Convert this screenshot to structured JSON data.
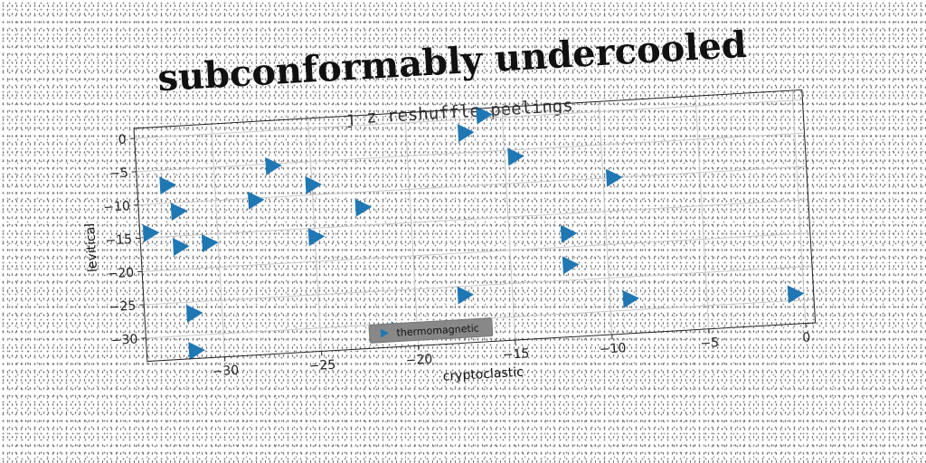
{
  "chart_data": {
    "type": "scatter",
    "title": "subconformably undercooled",
    "subtitle": "j z reshuffle peelings",
    "xlabel": "cryptoclastic",
    "ylabel": "levitical",
    "xlim": [
      -34,
      0.5
    ],
    "ylim": [
      -33.5,
      1.5
    ],
    "xticks": [
      -30,
      -25,
      -20,
      -15,
      -10,
      -5,
      0
    ],
    "yticks": [
      0,
      -5,
      -10,
      -15,
      -20,
      -25,
      -30
    ],
    "grid": true,
    "legend_position": "lower-center",
    "marker": "triangle-right",
    "marker_color": "#1f77b4",
    "series": [
      {
        "name": "thermomagnetic",
        "points": [
          {
            "x": -16,
            "y": 0.5
          },
          {
            "x": -17,
            "y": -2
          },
          {
            "x": -14.5,
            "y": -6
          },
          {
            "x": -27,
            "y": -5.3
          },
          {
            "x": -32.5,
            "y": -7.3
          },
          {
            "x": -25,
            "y": -8.5
          },
          {
            "x": -9.5,
            "y": -10
          },
          {
            "x": -28,
            "y": -10.3
          },
          {
            "x": -32,
            "y": -11.3
          },
          {
            "x": -22.5,
            "y": -12.3
          },
          {
            "x": -33.5,
            "y": -14.3
          },
          {
            "x": -32,
            "y": -16.6
          },
          {
            "x": -30.5,
            "y": -16.3
          },
          {
            "x": -25,
            "y": -16.3
          },
          {
            "x": -12,
            "y": -18
          },
          {
            "x": -12,
            "y": -22.7
          },
          {
            "x": -17.5,
            "y": -26.3
          },
          {
            "x": -31.5,
            "y": -26.7
          },
          {
            "x": -9,
            "y": -28.3
          },
          {
            "x": -0.5,
            "y": -29
          },
          {
            "x": -21,
            "y": -31
          },
          {
            "x": -31.5,
            "y": -32.3
          }
        ]
      }
    ]
  }
}
